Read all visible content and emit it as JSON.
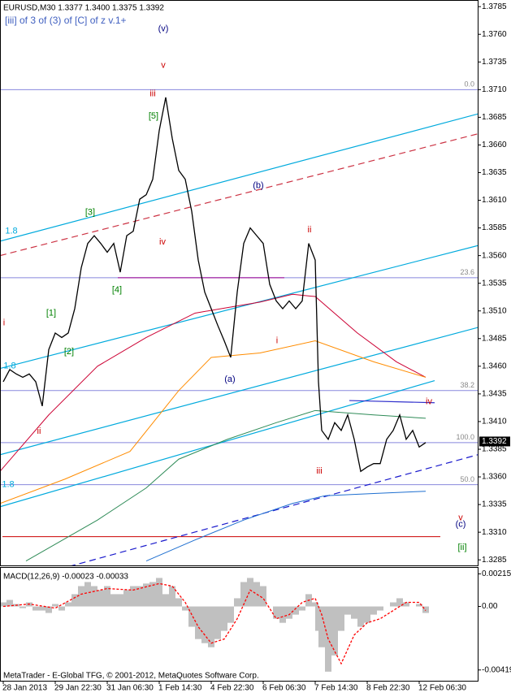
{
  "chart_data": [
    {
      "type": "line",
      "title": "EURUSD,M30 1.3377 1.3400 1.3375 1.3392",
      "subtitle": "[iii] of 3 of (3) of [C] of z v.1+",
      "xlim": [
        0,
        147
      ],
      "ylim": [
        1.328,
        1.3791
      ],
      "xticks": [
        {
          "value": 1,
          "label": "28 Jan 2013"
        },
        {
          "value": 17,
          "label": "29 Jan 22:30"
        },
        {
          "value": 33,
          "label": "31 Jan 06:30"
        },
        {
          "value": 49,
          "label": "1 Feb 14:30"
        },
        {
          "value": 65,
          "label": "4 Feb 22:30"
        },
        {
          "value": 81,
          "label": "6 Feb 06:30"
        },
        {
          "value": 97,
          "label": "7 Feb 14:30"
        },
        {
          "value": 113,
          "label": "8 Feb 22:30"
        },
        {
          "value": 129,
          "label": "12 Feb 06:30"
        }
      ],
      "yticks": [
        1.3285,
        {
          "value": 1.331,
          "label": "1.3310"
        },
        1.3335,
        {
          "value": 1.336,
          "label": "1.3360"
        },
        1.3385,
        {
          "value": 1.341,
          "label": "1.3410"
        },
        1.3435,
        {
          "value": 1.346,
          "label": "1.3460"
        },
        1.3485,
        {
          "value": 1.351,
          "label": "1.3510"
        },
        1.3535,
        {
          "value": 1.356,
          "label": "1.3560"
        },
        1.3585,
        {
          "value": 1.361,
          "label": "1.3610"
        },
        1.3635,
        {
          "value": 1.366,
          "label": "1.3660"
        },
        1.3685,
        {
          "value": 1.371,
          "label": "1.3710"
        },
        1.3735,
        {
          "value": 1.376,
          "label": "1.3760"
        },
        1.3785
      ],
      "last_price": 1.3392,
      "x": [
        1,
        3,
        5,
        7,
        9,
        11,
        13,
        15,
        17,
        19,
        21,
        23,
        25,
        27,
        29,
        31,
        33,
        35,
        37,
        39,
        41,
        43,
        45,
        47,
        49,
        51,
        53,
        55,
        57,
        59,
        61,
        63,
        65,
        67,
        69,
        71,
        73,
        75,
        77,
        79,
        81,
        83,
        85,
        87,
        89,
        91,
        93,
        95,
        97,
        98,
        99,
        101,
        103,
        105,
        107,
        109,
        111,
        113,
        115,
        117,
        119,
        121,
        123,
        125,
        127,
        129,
        131
      ],
      "series": [
        {
          "color": "#000000",
          "values": [
            1.3446,
            1.3457,
            1.3453,
            1.345,
            1.3453,
            1.3446,
            1.3424,
            1.3475,
            1.349,
            1.3486,
            1.349,
            1.3512,
            1.3549,
            1.3571,
            1.3578,
            1.3571,
            1.3563,
            1.3571,
            1.3545,
            1.3578,
            1.3582,
            1.3611,
            1.3615,
            1.3629,
            1.3673,
            1.3703,
            1.3666,
            1.3637,
            1.3629,
            1.36,
            1.3556,
            1.3527,
            1.3512,
            1.3497,
            1.3483,
            1.3468,
            1.3527,
            1.3571,
            1.3585,
            1.3578,
            1.3571,
            1.3534,
            1.3519,
            1.3512,
            1.3519,
            1.3512,
            1.3519,
            1.3571,
            1.3556,
            1.3446,
            1.3402,
            1.3394,
            1.3409,
            1.3402,
            1.3416,
            1.3394,
            1.3365,
            1.3369,
            1.3372,
            1.3372,
            1.3394,
            1.3402,
            1.3416,
            1.3394,
            1.3402,
            1.3387,
            1.3391
          ]
        }
      ],
      "moving_averages": [
        {
          "color": "#cc0033",
          "x": [
            0,
            15,
            30,
            45,
            60,
            80,
            90,
            97,
            110,
            122,
            131
          ],
          "values": [
            1.3365,
            1.3416,
            1.346,
            1.3486,
            1.3508,
            1.3518,
            1.3525,
            1.3523,
            1.349,
            1.3464,
            1.345
          ]
        },
        {
          "color": "#ff8c00",
          "x": [
            0,
            20,
            40,
            55,
            65,
            80,
            97,
            115,
            131
          ],
          "values": [
            1.3336,
            1.3358,
            1.3383,
            1.3438,
            1.3468,
            1.3472,
            1.3483,
            1.3464,
            1.345
          ]
        },
        {
          "color": "#2e8b57",
          "x": [
            8,
            30,
            45,
            55,
            70,
            85,
            97,
            115,
            131
          ],
          "values": [
            1.3284,
            1.3321,
            1.335,
            1.3376,
            1.3394,
            1.3409,
            1.342,
            1.3416,
            1.3413
          ]
        },
        {
          "color": "#1e6fd0",
          "x": [
            45,
            60,
            75,
            90,
            100,
            115,
            131
          ],
          "values": [
            1.3284,
            1.3303,
            1.3321,
            1.3336,
            1.3343,
            1.3345,
            1.3347
          ]
        }
      ],
      "trendlines": [
        {
          "color": "#00aadd",
          "x": [
            0,
            147
          ],
          "values": [
            1.3573,
            1.3688
          ]
        },
        {
          "color": "#00aadd",
          "x": [
            0,
            147
          ],
          "values": [
            1.3458,
            1.3569
          ]
        },
        {
          "color": "#00aadd",
          "x": [
            0,
            147
          ],
          "values": [
            1.338,
            1.3495
          ]
        },
        {
          "color": "#00aadd",
          "x": [
            0,
            133.75
          ],
          "values": [
            1.3333,
            1.3447
          ]
        },
        {
          "color": "#cc3344",
          "dashed": true,
          "x": [
            0,
            147
          ],
          "values": [
            1.356,
            1.367
          ]
        },
        {
          "color": "#1a1acc",
          "dashed": true,
          "x": [
            21.25,
            147
          ],
          "values": [
            1.3279,
            1.338
          ]
        },
        {
          "color": "#a020a0",
          "x": [
            36.25,
            87.5
          ],
          "values": [
            1.354,
            1.354
          ]
        },
        {
          "color": "#3030cc",
          "x": [
            107.5,
            133.75
          ],
          "values": [
            1.3429,
            1.3427
          ]
        }
      ],
      "levels": [
        {
          "label": "0.0",
          "value": 1.371,
          "color": "#8888dd"
        },
        {
          "label": "23.6",
          "value": 1.354,
          "color": "#8888dd"
        },
        {
          "label": "38.2",
          "value": 1.3438,
          "color": "#8888dd"
        },
        {
          "label": "50.0",
          "value": 1.3353,
          "color": "#8888dd"
        },
        {
          "label": "100.0",
          "value": 1.3391,
          "color": "#8888dd"
        },
        {
          "value": 1.3306,
          "color": "#cc0000",
          "x": [
            0.75,
            135.5
          ]
        }
      ],
      "annotations": [
        {
          "text": "(v)",
          "x": 50.25,
          "y": 1.3765,
          "color": "#000080"
        },
        {
          "text": "v",
          "x": 50.25,
          "y": 1.3732,
          "color": "#cc0000"
        },
        {
          "text": "iii",
          "x": 47,
          "y": 1.3706,
          "color": "#cc0000"
        },
        {
          "text": "[5]",
          "x": 47.25,
          "y": 1.3686,
          "color": "#008000"
        },
        {
          "text": "(b)",
          "x": 79.5,
          "y": 1.3623,
          "color": "#000080"
        },
        {
          "text": "iv",
          "x": 50,
          "y": 1.3572,
          "color": "#cc0000"
        },
        {
          "text": "[3]",
          "x": 27.75,
          "y": 1.3599,
          "color": "#008000"
        },
        {
          "text": "ii",
          "x": 95.25,
          "y": 1.3583,
          "color": "#cc0000"
        },
        {
          "text": "[4]",
          "x": 36,
          "y": 1.3529,
          "color": "#008000"
        },
        {
          "text": "[1]",
          "x": 15.75,
          "y": 1.3508,
          "color": "#008000"
        },
        {
          "text": "[2]",
          "x": 21.25,
          "y": 1.3473,
          "color": "#008000"
        },
        {
          "text": "i",
          "x": 1.25,
          "y": 1.3499,
          "color": "#cc0000"
        },
        {
          "text": "ii",
          "x": 12,
          "y": 1.3401,
          "color": "#cc0000"
        },
        {
          "text": "(a)",
          "x": 70.75,
          "y": 1.3448,
          "color": "#000080"
        },
        {
          "text": "i",
          "x": 85.25,
          "y": 1.3483,
          "color": "#cc0000"
        },
        {
          "text": "iii",
          "x": 98.25,
          "y": 1.3365,
          "color": "#cc0000"
        },
        {
          "text": "iv",
          "x": 132,
          "y": 1.3428,
          "color": "#cc0000"
        },
        {
          "text": "v",
          "x": 141.75,
          "y": 1.3323,
          "color": "#cc0000"
        },
        {
          "text": "(c)",
          "x": 141.75,
          "y": 1.3317,
          "color": "#000080"
        },
        {
          "text": "[ii]",
          "x": 142.25,
          "y": 1.3296,
          "color": "#008000"
        },
        {
          "text": "1.8",
          "x": 3.5,
          "y": 1.3582,
          "color": "#00aadd"
        },
        {
          "text": "1.8",
          "x": 3,
          "y": 1.346,
          "color": "#00aadd"
        },
        {
          "text": "1.8",
          "x": 2.5,
          "y": 1.3353,
          "color": "#00aadd"
        }
      ]
    },
    {
      "type": "macd",
      "title": "MACD(12,26,9) -0.00023 -0.00033",
      "footer": "MetaTrader - E-Global TFG, © 2001-2012, MetaQuotes Software Corp.",
      "xlim": [
        0,
        147
      ],
      "ylim": [
        -0.0049,
        0.0026
      ],
      "yticks": [
        0.00215,
        {
          "value": 0,
          "label": "0.00"
        },
        -0.00419
      ],
      "color": "#c0c0c0",
      "x": [
        1,
        3,
        5,
        7,
        9,
        11,
        13,
        15,
        17,
        19,
        21,
        23,
        25,
        27,
        29,
        31,
        33,
        35,
        37,
        39,
        41,
        43,
        45,
        47,
        49,
        51,
        53,
        55,
        57,
        59,
        61,
        63,
        65,
        67,
        69,
        71,
        73,
        75,
        77,
        79,
        81,
        83,
        85,
        87,
        89,
        91,
        93,
        95,
        97,
        98,
        99,
        101,
        103,
        105,
        107,
        109,
        111,
        113,
        115,
        117,
        119,
        121,
        123,
        125,
        127,
        129,
        131
      ],
      "values": [
        0.00027,
        0.00043,
        0.00016,
        -0.00011,
        0.00027,
        -0.00027,
        -0.00027,
        -0.00043,
        0.00016,
        -0.00027,
        0.00027,
        0.00081,
        0.00134,
        0.00161,
        0.00134,
        0.00108,
        0.00134,
        0.00081,
        0.00081,
        0.00108,
        0.00134,
        0.00134,
        0.00151,
        0.00161,
        0.00188,
        0.00081,
        0.00134,
        0.00054,
        -0.00027,
        -0.00134,
        -0.00215,
        -0.00242,
        -0.00269,
        -0.00215,
        -0.00161,
        -0.00108,
        0.00054,
        0.00161,
        0.00188,
        0.00161,
        0.00134,
        0,
        -0.00081,
        -0.00108,
        -0.00081,
        -0.00054,
        -0.00027,
        0.00081,
        0.00027,
        -0.00161,
        -0.00269,
        -0.0043,
        -0.00323,
        -0.00161,
        -0.00054,
        -0.00081,
        -0.00134,
        -0.00108,
        -0.00054,
        -0.00027,
        0,
        0.00027,
        0.00054,
        0.00027,
        0,
        0.00016,
        -0.00043
      ],
      "signal": {
        "color": "#ff0000",
        "x": [
          1,
          9,
          17,
          25,
          33,
          41,
          49,
          53,
          57,
          61,
          65,
          69,
          73,
          77,
          81,
          85,
          89,
          93,
          97,
          99,
          101,
          105,
          109,
          113,
          117,
          121,
          125,
          129,
          131
        ],
        "values": [
          0,
          0.00016,
          -0.00011,
          0.00081,
          0.00118,
          0.00108,
          0.00151,
          0.00134,
          0.00027,
          -0.00134,
          -0.00242,
          -0.00215,
          -0.00081,
          0.00108,
          0.00054,
          -0.00081,
          -0.00054,
          0.00027,
          0.00054,
          -0.00054,
          -0.00215,
          -0.00377,
          -0.00188,
          -0.00108,
          -0.00081,
          -0.00027,
          0.00027,
          0.00027,
          -0.00027
        ]
      }
    }
  ]
}
